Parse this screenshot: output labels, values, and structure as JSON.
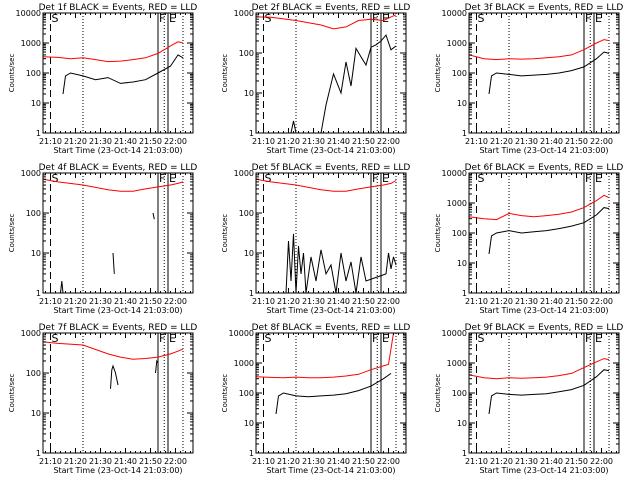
{
  "figure": {
    "xlabel": "Start Time (23-Oct-14 21:03:00)",
    "ylabel": "Counts/sec"
  },
  "colors": {
    "events": "#000000",
    "lld": "#ff0000",
    "axes": "#000000"
  },
  "chart_data": [
    {
      "type": "line",
      "title": "Det 1f BLACK = Events, RED = LLD",
      "xlabel": "Start Time (23-Oct-14 21:03:00)",
      "ylabel": "Counts/sec",
      "y_scale": "log",
      "ylim": [
        1,
        10000
      ],
      "ylim_label": "10000",
      "xticks": [
        "21:10",
        "21:20",
        "21:30",
        "21:40",
        "21:50",
        "22:00"
      ],
      "yticks": [
        "1",
        "10",
        "100",
        "1000",
        "10000"
      ],
      "markers": [
        {
          "label": "S",
          "style": "dashed",
          "minute": 7
        },
        {
          "label": "F",
          "style": "solid",
          "minute": 50
        },
        {
          "label": "E",
          "style": "solid",
          "minute": 54
        }
      ],
      "dotted_lines": [
        20,
        52.5,
        60
      ],
      "series": [
        {
          "name": "BLACK = Events",
          "x_minutes": [
            12,
            13,
            15,
            20,
            25,
            30,
            35,
            40,
            45,
            50,
            55,
            58,
            60
          ],
          "values": [
            20,
            80,
            100,
            80,
            60,
            70,
            45,
            50,
            60,
            100,
            170,
            400,
            320
          ]
        },
        {
          "name": "RED = LLD",
          "x_minutes": [
            4,
            10,
            15,
            20,
            25,
            30,
            35,
            40,
            45,
            50,
            55,
            58,
            60
          ],
          "values": [
            350,
            330,
            300,
            320,
            280,
            240,
            250,
            280,
            320,
            450,
            800,
            1100,
            1000
          ]
        }
      ]
    },
    {
      "type": "line",
      "title": "Det 2f BLACK = Events, RED = LLD",
      "xlabel": "Start Time (23-Oct-14 21:03:00)",
      "ylabel": "Counts/sec",
      "y_scale": "log",
      "ylim": [
        1,
        1000
      ],
      "ylim_label": "1000",
      "xticks": [
        "21:10",
        "21:20",
        "21:30",
        "21:40",
        "21:50",
        "22:00"
      ],
      "yticks": [
        "1",
        "10",
        "100",
        "1000"
      ],
      "markers": [
        {
          "label": "S",
          "style": "dashed",
          "minute": 7
        },
        {
          "label": "F",
          "style": "solid",
          "minute": 50
        },
        {
          "label": "E",
          "style": "solid",
          "minute": 54
        }
      ],
      "dotted_lines": [
        20,
        52.5,
        60
      ],
      "series": [
        {
          "name": "BLACK = Events",
          "x_minutes": [
            18,
            19,
            20,
            30,
            32,
            35,
            38,
            40,
            42,
            44,
            46,
            48,
            50,
            52,
            54,
            56,
            58,
            60
          ],
          "values": [
            1,
            2,
            1,
            1,
            5,
            30,
            10,
            60,
            15,
            130,
            80,
            50,
            140,
            160,
            200,
            280,
            120,
            150
          ]
        },
        {
          "name": "RED = LLD",
          "x_minutes": [
            4,
            10,
            20,
            30,
            35,
            40,
            45,
            50,
            55,
            58,
            60
          ],
          "values": [
            800,
            780,
            650,
            500,
            400,
            450,
            650,
            700,
            650,
            800,
            900
          ]
        }
      ]
    },
    {
      "type": "line",
      "title": "Det 3f BLACK = Events, RED = LLD",
      "xlabel": "Start Time (23-Oct-14 21:03:00)",
      "ylabel": "Counts/sec",
      "y_scale": "log",
      "ylim": [
        1,
        10000
      ],
      "ylim_label": "10000",
      "xticks": [
        "21:10",
        "21:20",
        "21:30",
        "21:40",
        "21:50",
        "22:00"
      ],
      "yticks": [
        "1",
        "10",
        "100",
        "1000",
        "10000"
      ],
      "markers": [
        {
          "label": "S",
          "style": "dashed",
          "minute": 7
        },
        {
          "label": "F",
          "style": "solid",
          "minute": 50
        },
        {
          "label": "E",
          "style": "solid",
          "minute": 54
        }
      ],
      "dotted_lines": [
        20,
        52.5,
        60
      ],
      "series": [
        {
          "name": "BLACK = Events",
          "x_minutes": [
            12,
            13,
            15,
            20,
            25,
            30,
            35,
            40,
            45,
            50,
            55,
            58,
            60
          ],
          "values": [
            20,
            80,
            100,
            90,
            80,
            85,
            90,
            100,
            120,
            160,
            300,
            500,
            450
          ]
        },
        {
          "name": "RED = LLD",
          "x_minutes": [
            4,
            10,
            15,
            20,
            25,
            30,
            35,
            40,
            45,
            50,
            55,
            58,
            60
          ],
          "values": [
            400,
            300,
            280,
            300,
            290,
            300,
            320,
            350,
            400,
            600,
            1000,
            1300,
            1200
          ]
        }
      ]
    },
    {
      "type": "line",
      "title": "Det 4f BLACK = Events, RED = LLD",
      "xlabel": "Start Time (23-Oct-14 21:03:00)",
      "ylabel": "Counts/sec",
      "y_scale": "log",
      "ylim": [
        1,
        1000
      ],
      "ylim_label": "1000",
      "xticks": [
        "21:10",
        "21:20",
        "21:30",
        "21:40",
        "21:50",
        "22:00"
      ],
      "yticks": [
        "1",
        "10",
        "100",
        "1000"
      ],
      "markers": [
        {
          "label": "S",
          "style": "dashed",
          "minute": 7
        },
        {
          "label": "F",
          "style": "solid",
          "minute": 50
        },
        {
          "label": "E",
          "style": "solid",
          "minute": 54
        }
      ],
      "dotted_lines": [
        20,
        52.5,
        60
      ],
      "series": [
        {
          "name": "BLACK = Events",
          "x_minutes": [
            11,
            11.5,
            12,
            12.5,
            32,
            32.5,
            33,
            48,
            48.5,
            49
          ],
          "values": [
            1,
            2,
            1,
            null,
            10,
            3,
            null,
            100,
            70,
            null
          ]
        },
        {
          "name": "RED = LLD",
          "x_minutes": [
            4,
            10,
            20,
            30,
            35,
            40,
            45,
            50,
            55,
            58,
            60
          ],
          "values": [
            700,
            600,
            500,
            380,
            350,
            350,
            400,
            450,
            500,
            550,
            600
          ]
        }
      ]
    },
    {
      "type": "line",
      "title": "Det 5f BLACK = Events, RED = LLD",
      "xlabel": "Start Time (23-Oct-14 21:03:00)",
      "ylabel": "Counts/sec",
      "y_scale": "log",
      "ylim": [
        1,
        1000
      ],
      "ylim_label": "1000",
      "xticks": [
        "21:10",
        "21:20",
        "21:30",
        "21:40",
        "21:50",
        "22:00"
      ],
      "yticks": [
        "1",
        "10",
        "100",
        "1000"
      ],
      "markers": [
        {
          "label": "S",
          "style": "dashed",
          "minute": 7
        },
        {
          "label": "F",
          "style": "solid",
          "minute": 50
        },
        {
          "label": "E",
          "style": "solid",
          "minute": 54
        }
      ],
      "dotted_lines": [
        20,
        52.5,
        60
      ],
      "series": [
        {
          "name": "BLACK = Events",
          "x_minutes": [
            16,
            17,
            18,
            19,
            20,
            21,
            22,
            23,
            24,
            26,
            28,
            30,
            32,
            34,
            36,
            38,
            40,
            42,
            44,
            46,
            48,
            56,
            57,
            58,
            59,
            60
          ],
          "values": [
            1,
            20,
            2,
            30,
            1,
            15,
            3,
            10,
            1,
            8,
            2,
            12,
            3,
            5,
            1,
            10,
            2,
            6,
            1,
            8,
            2,
            3,
            10,
            4,
            8,
            5
          ]
        },
        {
          "name": "RED = LLD",
          "x_minutes": [
            4,
            10,
            20,
            30,
            35,
            40,
            45,
            50,
            55,
            58,
            60
          ],
          "values": [
            700,
            600,
            500,
            380,
            350,
            350,
            400,
            450,
            500,
            550,
            650
          ]
        }
      ]
    },
    {
      "type": "line",
      "title": "Det 6f BLACK = Events, RED = LLD",
      "xlabel": "Start Time (23-Oct-14 21:03:00)",
      "ylabel": "Counts/sec",
      "y_scale": "log",
      "ylim": [
        1,
        10000
      ],
      "ylim_label": "10000",
      "xticks": [
        "21:10",
        "21:20",
        "21:30",
        "21:40",
        "21:50",
        "22:00"
      ],
      "yticks": [
        "1",
        "10",
        "100",
        "1000",
        "10000"
      ],
      "markers": [
        {
          "label": "S",
          "style": "dashed",
          "minute": 7
        },
        {
          "label": "F",
          "style": "solid",
          "minute": 50
        },
        {
          "label": "E",
          "style": "solid",
          "minute": 54
        }
      ],
      "dotted_lines": [
        20,
        52.5,
        60
      ],
      "series": [
        {
          "name": "BLACK = Events",
          "x_minutes": [
            12,
            13,
            15,
            20,
            25,
            30,
            35,
            40,
            45,
            50,
            55,
            58,
            60
          ],
          "values": [
            20,
            80,
            100,
            120,
            100,
            110,
            120,
            140,
            170,
            220,
            400,
            700,
            650
          ]
        },
        {
          "name": "RED = LLD",
          "x_minutes": [
            4,
            10,
            15,
            20,
            25,
            30,
            35,
            40,
            45,
            50,
            55,
            58,
            60
          ],
          "values": [
            350,
            300,
            280,
            450,
            380,
            350,
            380,
            420,
            500,
            700,
            1200,
            1800,
            1500
          ]
        }
      ]
    },
    {
      "type": "line",
      "title": "Det 7f BLACK = Events, RED = LLD",
      "xlabel": "Start Time (23-Oct-14 21:03:00)",
      "ylabel": "Counts/sec",
      "y_scale": "log",
      "ylim": [
        1,
        1000
      ],
      "ylim_label": "1000",
      "xticks": [
        "21:10",
        "21:20",
        "21:30",
        "21:40",
        "21:50",
        "22:00"
      ],
      "yticks": [
        "1",
        "10",
        "100",
        "1000"
      ],
      "markers": [
        {
          "label": "S",
          "style": "dashed",
          "minute": 7
        },
        {
          "label": "F",
          "style": "solid",
          "minute": 50
        },
        {
          "label": "E",
          "style": "solid",
          "minute": 54
        }
      ],
      "dotted_lines": [
        20,
        52.5,
        60
      ],
      "series": [
        {
          "name": "BLACK = Events",
          "x_minutes": [
            31,
            31.5,
            32,
            33,
            34,
            34.5,
            49,
            49.5,
            50
          ],
          "values": [
            40,
            120,
            150,
            100,
            50,
            null,
            100,
            200,
            180
          ]
        },
        {
          "name": "RED = LLD",
          "x_minutes": [
            4,
            10,
            20,
            30,
            35,
            40,
            45,
            50,
            55,
            58,
            60
          ],
          "values": [
            600,
            550,
            500,
            300,
            250,
            220,
            230,
            250,
            300,
            350,
            400
          ]
        }
      ]
    },
    {
      "type": "line",
      "title": "Det 8f BLACK = Events, RED = LLD",
      "xlabel": "Start Time (23-Oct-14 21:03:00)",
      "ylabel": "Counts/sec",
      "y_scale": "log",
      "ylim": [
        1,
        10000
      ],
      "ylim_label": "10000",
      "xticks": [
        "21:10",
        "21:20",
        "21:30",
        "21:40",
        "21:50",
        "22:00"
      ],
      "yticks": [
        "1",
        "10",
        "100",
        "1000",
        "10000"
      ],
      "markers": [
        {
          "label": "S",
          "style": "dashed",
          "minute": 7
        },
        {
          "label": "F",
          "style": "solid",
          "minute": 50
        },
        {
          "label": "E",
          "style": "solid",
          "minute": 54
        }
      ],
      "dotted_lines": [
        20,
        52.5,
        60
      ],
      "series": [
        {
          "name": "BLACK = Events",
          "x_minutes": [
            12,
            13,
            15,
            20,
            25,
            30,
            35,
            40,
            45,
            50,
            55,
            58
          ],
          "values": [
            20,
            80,
            100,
            80,
            75,
            80,
            85,
            95,
            120,
            170,
            300,
            450
          ]
        },
        {
          "name": "RED = LLD",
          "x_minutes": [
            4,
            10,
            15,
            20,
            25,
            30,
            35,
            40,
            45,
            50,
            55,
            57,
            58,
            59
          ],
          "values": [
            350,
            330,
            320,
            340,
            320,
            320,
            340,
            370,
            420,
            600,
            800,
            900,
            3000,
            10000
          ]
        }
      ]
    },
    {
      "type": "line",
      "title": "Det 9f BLACK = Events, RED = LLD",
      "xlabel": "Start Time (23-Oct-14 21:03:00)",
      "ylabel": "Counts/sec",
      "y_scale": "log",
      "ylim": [
        1,
        10000
      ],
      "ylim_label": "10000",
      "xticks": [
        "21:10",
        "21:20",
        "21:30",
        "21:40",
        "21:50",
        "22:00"
      ],
      "yticks": [
        "1",
        "10",
        "100",
        "1000",
        "10000"
      ],
      "markers": [
        {
          "label": "S",
          "style": "dashed",
          "minute": 7
        },
        {
          "label": "F",
          "style": "solid",
          "minute": 50
        },
        {
          "label": "E",
          "style": "solid",
          "minute": 54
        }
      ],
      "dotted_lines": [
        20,
        52.5,
        60
      ],
      "series": [
        {
          "name": "BLACK = Events",
          "x_minutes": [
            12,
            13,
            15,
            20,
            25,
            30,
            35,
            40,
            45,
            50,
            55,
            58,
            60
          ],
          "values": [
            20,
            80,
            100,
            90,
            85,
            90,
            95,
            110,
            130,
            180,
            350,
            600,
            550
          ]
        },
        {
          "name": "RED = LLD",
          "x_minutes": [
            4,
            10,
            15,
            20,
            25,
            30,
            35,
            40,
            45,
            50,
            55,
            58,
            60
          ],
          "values": [
            400,
            320,
            300,
            320,
            310,
            320,
            340,
            380,
            450,
            700,
            1100,
            1400,
            1300
          ]
        }
      ]
    }
  ]
}
